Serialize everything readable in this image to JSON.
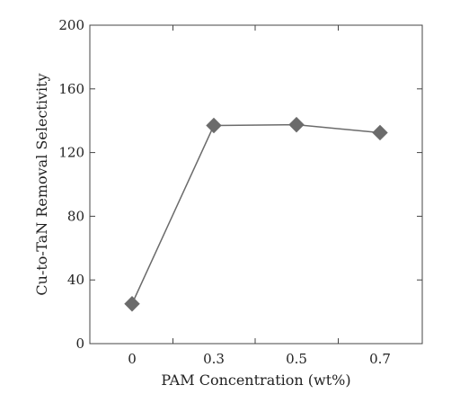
{
  "chart_data": {
    "type": "line",
    "title": "",
    "xlabel": "PAM Concentration (wt%)",
    "ylabel": "Cu-to-TaN Removal Selectivity",
    "categories": [
      "0",
      "0.3",
      "0.5",
      "0.7"
    ],
    "series": [
      {
        "values": [
          25,
          137,
          137.5,
          132.5
        ],
        "color": "#6b6b6b",
        "marker": "diamond"
      }
    ],
    "ylim": [
      0,
      200
    ],
    "yticks": [
      "0",
      "40",
      "80",
      "120",
      "160",
      "200"
    ],
    "grid": false,
    "legend": "none"
  }
}
